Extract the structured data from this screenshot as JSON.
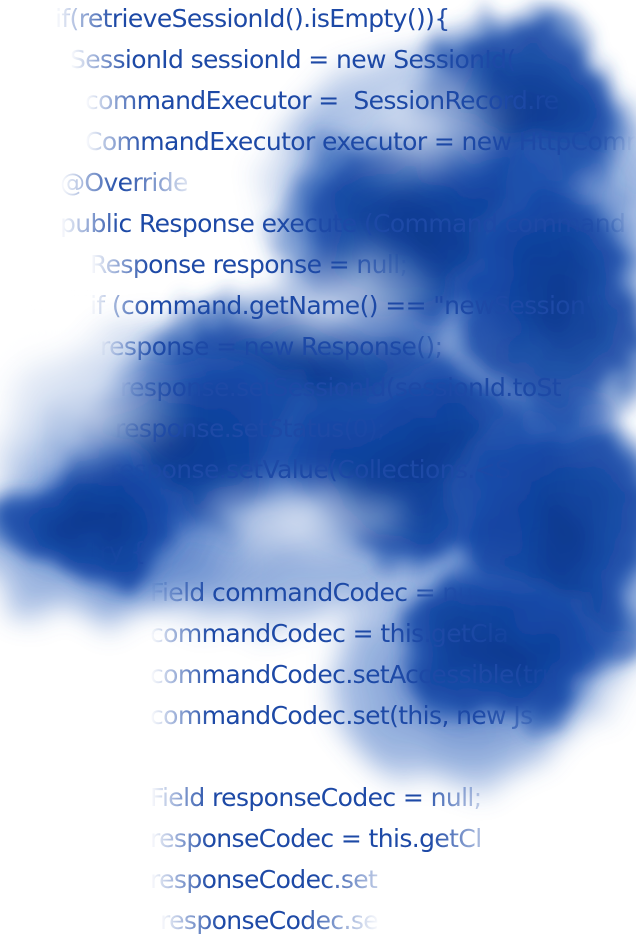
{
  "colors": {
    "code_text": "#1d49a6",
    "cloud_dark": "#0a3d9c",
    "cloud_mid": "#2a5fb8",
    "cloud_light": "#7f9fd6",
    "background": "#ffffff"
  },
  "code_lines": [
    "if(retrieveSessionId().isEmpty()){",
    "    SessionId sessionId = new SessionId(",
    "    commandExecutor =  SessionRecord.re",
    "    CommandExecutor executor = new HttpCommc",
    "    @Override",
    "    public Response execute (Command command",
    "        Response response = null;",
    "        if (command.getName() == \"newSession\")",
    "            response = new Response();",
    "            response.setSessionId(sessionId.toSt",
    "            response.setStatus(0);",
    "            response.setValue(Collections.<S",
    "",
    "        try {",
    "            Field commandCodec = nu",
    "            commandCodec = this.getCla",
    "            commandCodec.setAccessible(tru",
    "            commandCodec.set(this, new Js",
    "",
    "            Field responseCodec = null;",
    "            responseCodec = this.getCl",
    "            responseCodec.set",
    "            responseCodec.se"
  ]
}
